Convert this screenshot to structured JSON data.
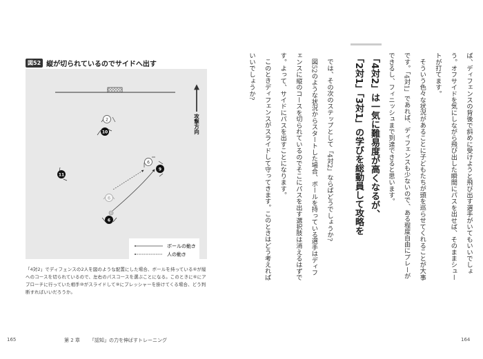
{
  "figure": {
    "badge": "図52",
    "title": "縦が切られているのでサイドへ出す",
    "direction_label": "攻撃方向",
    "players": [
      {
        "number": "2",
        "team": "white"
      },
      {
        "number": "10",
        "team": "black"
      },
      {
        "number": "6",
        "team": "white"
      },
      {
        "number": "9",
        "team": "black"
      },
      {
        "number": "11",
        "team": "black"
      },
      {
        "number": "6",
        "team": "white-faded"
      },
      {
        "number": "6",
        "team": "black"
      }
    ],
    "legend": {
      "ball_movement": "ボールの動き",
      "player_movement": "人の動き"
    },
    "caption": "「4対2」でディフェンスの2人を図のような配置にした場合、ボールを持っている⑥が縦へのコースを切られているので、左右のパスコースを選ぶことになる。このときに⑥にアプローチに行っていた相手⑩がスライドして⑨にプレッシャーを掛けてくる場合、どう判断すればいいだろうか。"
  },
  "right_page": {
    "paragraphs": [
      "ば、ディフェンスの背後で斜めに受けようと飛び出す選手がいてもいいでしょう。オフサイドを気にしながら飛び出した瞬間にパスを出せば、そのままシュートが打てます。",
      "そういう色々な状況があることに子どもたちが頭を巡らせてくれることが大事です。「4対1」であれば、ディフェンスも少ないので、ある程度自由にプレーができるし、フィニッシュまで到達できると思います。"
    ],
    "headline": [
      "「4対2」は一気に難易度が高くなるが、",
      "「2対1」「3対1」の学びを総動員して攻略を"
    ],
    "paragraphs2": [
      "では、その次のステップとして「4対2」ならばどうでしょうか?",
      "図52のような状況からスタートした場合、ボールを持っている選手はディフェンスに縦のコースを切られているのでそこにパスを出す選択肢は消えるはずです。よって、サイドにパスを出すことになります。",
      "このときディフェンスがスライドして守ってきます。このときはどう考えればいいでしょうか?"
    ]
  },
  "footer": {
    "left_page_number": "165",
    "chapter": "第 2 章",
    "chapter_title": "「認知」の力を伸ばすトレーニング",
    "right_page_number": "164"
  }
}
